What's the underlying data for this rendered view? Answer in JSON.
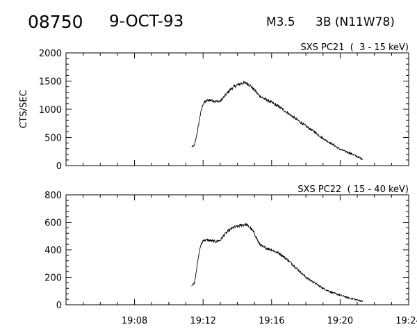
{
  "header": {
    "event_id": "08750",
    "date": "9-OCT-93",
    "flare_class": "M3.5",
    "flare_info": "3B (N11W78)"
  },
  "chart_data": [
    {
      "type": "line",
      "title": "SXS PC21  (  3 - 15 keV)",
      "xlabel": "",
      "ylabel": "CTS/SEC",
      "xlim": [
        "19:04",
        "19:24"
      ],
      "x_ticks": [
        "19:08",
        "19:12",
        "19:16",
        "19:20",
        "19:24"
      ],
      "ylim": [
        0,
        2000
      ],
      "y_ticks": [
        "0",
        "500",
        "1000",
        "1500",
        "2000"
      ],
      "x": [
        "19:11:20",
        "19:11:30",
        "19:11:40",
        "19:11:50",
        "19:12:00",
        "19:12:15",
        "19:12:30",
        "19:12:45",
        "19:13:00",
        "19:13:15",
        "19:13:30",
        "19:13:45",
        "19:14:00",
        "19:14:15",
        "19:14:30",
        "19:14:45",
        "19:15:00",
        "19:15:15",
        "19:15:30",
        "19:16:00",
        "19:16:30",
        "19:17:00",
        "19:17:30",
        "19:18:00",
        "19:18:30",
        "19:19:00",
        "19:19:30",
        "19:20:00",
        "19:20:30",
        "19:21:00",
        "19:21:20"
      ],
      "values": [
        330,
        360,
        600,
        900,
        1100,
        1160,
        1160,
        1140,
        1140,
        1230,
        1320,
        1390,
        1430,
        1460,
        1470,
        1420,
        1340,
        1250,
        1200,
        1120,
        1030,
        920,
        810,
        700,
        600,
        480,
        390,
        290,
        230,
        160,
        110
      ],
      "grid": false,
      "legend": "none"
    },
    {
      "type": "line",
      "title": "SXS PC22  ( 15 - 40 keV)",
      "xlabel": "",
      "ylabel": "",
      "xlim": [
        "19:04",
        "19:24"
      ],
      "x_ticks": [
        "19:08",
        "19:12",
        "19:16",
        "19:20",
        "19:24"
      ],
      "ylim": [
        0,
        800
      ],
      "y_ticks": [
        "0",
        "200",
        "400",
        "600",
        "800"
      ],
      "x": [
        "19:11:20",
        "19:11:30",
        "19:11:40",
        "19:11:50",
        "19:12:00",
        "19:12:15",
        "19:12:30",
        "19:12:45",
        "19:13:00",
        "19:13:15",
        "19:13:30",
        "19:13:45",
        "19:14:00",
        "19:14:15",
        "19:14:30",
        "19:14:45",
        "19:15:00",
        "19:15:15",
        "19:15:30",
        "19:16:00",
        "19:16:30",
        "19:17:00",
        "19:17:30",
        "19:18:00",
        "19:18:30",
        "19:19:00",
        "19:19:30",
        "19:20:00",
        "19:20:30",
        "19:21:00",
        "19:21:20"
      ],
      "values": [
        140,
        160,
        300,
        420,
        470,
        470,
        465,
        460,
        470,
        510,
        540,
        560,
        570,
        580,
        585,
        560,
        520,
        450,
        420,
        400,
        370,
        320,
        260,
        200,
        160,
        120,
        90,
        70,
        50,
        35,
        25
      ],
      "grid": false,
      "legend": "none"
    }
  ]
}
